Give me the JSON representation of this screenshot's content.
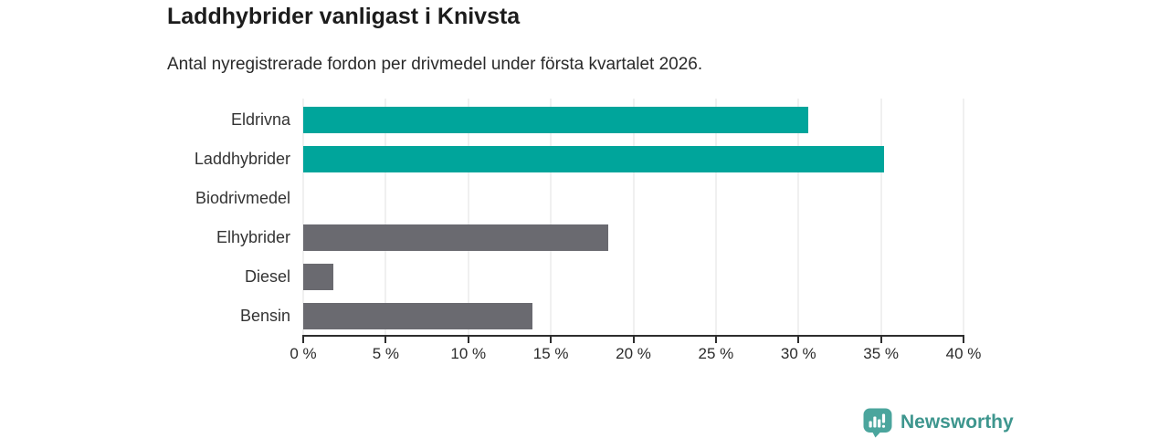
{
  "chart_data": {
    "type": "bar",
    "orientation": "horizontal",
    "title": "Laddhybrider vanligast i Knivsta",
    "subtitle": "Antal nyregistrerade fordon per drivmedel under första kvartalet 2026.",
    "categories": [
      "Eldrivna",
      "Laddhybrider",
      "Biodrivmedel",
      "Elhybrider",
      "Diesel",
      "Bensin"
    ],
    "values": [
      30.6,
      35.2,
      0,
      18.5,
      1.8,
      13.9
    ],
    "unit": "%",
    "xlim": [
      0,
      40
    ],
    "xticks": [
      0,
      5,
      10,
      15,
      20,
      25,
      30,
      35,
      40
    ],
    "xtick_labels": [
      "0 %",
      "5 %",
      "10 %",
      "15 %",
      "20 %",
      "25 %",
      "30 %",
      "35 %",
      "40 %"
    ],
    "bar_colors": [
      "#00a59b",
      "#00a59b",
      "#6a6a70",
      "#6a6a70",
      "#6a6a70",
      "#6a6a70"
    ],
    "highlight_color": "#00a59b",
    "default_color": "#6a6a70",
    "grid": true,
    "legend": "none"
  },
  "footer": {
    "brand": "Newsworthy",
    "brand_color": "#3e968e",
    "logo_icon": "bar-chart-speech-bubble-icon"
  }
}
